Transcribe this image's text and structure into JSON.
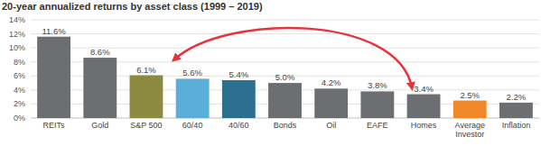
{
  "chart_data": {
    "type": "bar",
    "title": "20-year annualized returns by asset class (1999 – 2019)",
    "categories": [
      "REITs",
      "Gold",
      "S&P 500",
      "60/40",
      "40/60",
      "Bonds",
      "Oil",
      "EAFE",
      "Homes",
      "Average Investor",
      "Inflation"
    ],
    "values": [
      11.6,
      8.6,
      6.1,
      5.6,
      5.4,
      5.0,
      4.2,
      3.8,
      3.4,
      2.5,
      2.2
    ],
    "value_labels": [
      "11.6%",
      "8.6%",
      "6.1%",
      "5.6%",
      "5.4%",
      "5.0%",
      "4.2%",
      "3.8%",
      "3.4%",
      "2.5%",
      "2.2%"
    ],
    "colors": [
      "#6d6e71",
      "#6d6e71",
      "#8b8a3e",
      "#5aaed8",
      "#2d6f8f",
      "#6d6e71",
      "#6d6e71",
      "#6d6e71",
      "#6d6e71",
      "#f0892a",
      "#6d6e71"
    ],
    "ylim": [
      0,
      14
    ],
    "yticks": [
      {
        "value": 0,
        "label": "0%"
      },
      {
        "value": 2,
        "label": "2%"
      },
      {
        "value": 4,
        "label": "4%"
      },
      {
        "value": 6,
        "label": "6%"
      },
      {
        "value": 8,
        "label": "8%"
      },
      {
        "value": 10,
        "label": "10%"
      },
      {
        "value": 12,
        "label": "12%"
      },
      {
        "value": 14,
        "label": "14%"
      }
    ],
    "grid": true,
    "data_labels": true
  }
}
